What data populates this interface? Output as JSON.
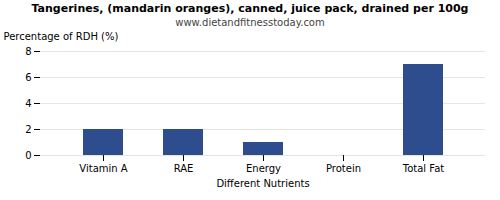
{
  "chart_data": {
    "type": "bar",
    "title": "Tangerines, (mandarin oranges), canned, juice pack, drained per 100g",
    "subtitle": "www.dietandfitnesstoday.com",
    "categories": [
      "Vitamin A",
      "RAE",
      "Energy",
      "Protein",
      "Total Fat"
    ],
    "values": [
      2.0,
      2.0,
      1.0,
      0.0,
      7.0
    ],
    "color": "#2e4d8e",
    "xlabel": "Different Nutrients",
    "ylabel": "Percentage of RDH (%)",
    "ylim": [
      0,
      8
    ],
    "yticks": [
      0,
      2,
      4,
      6,
      8
    ],
    "grid": true
  }
}
